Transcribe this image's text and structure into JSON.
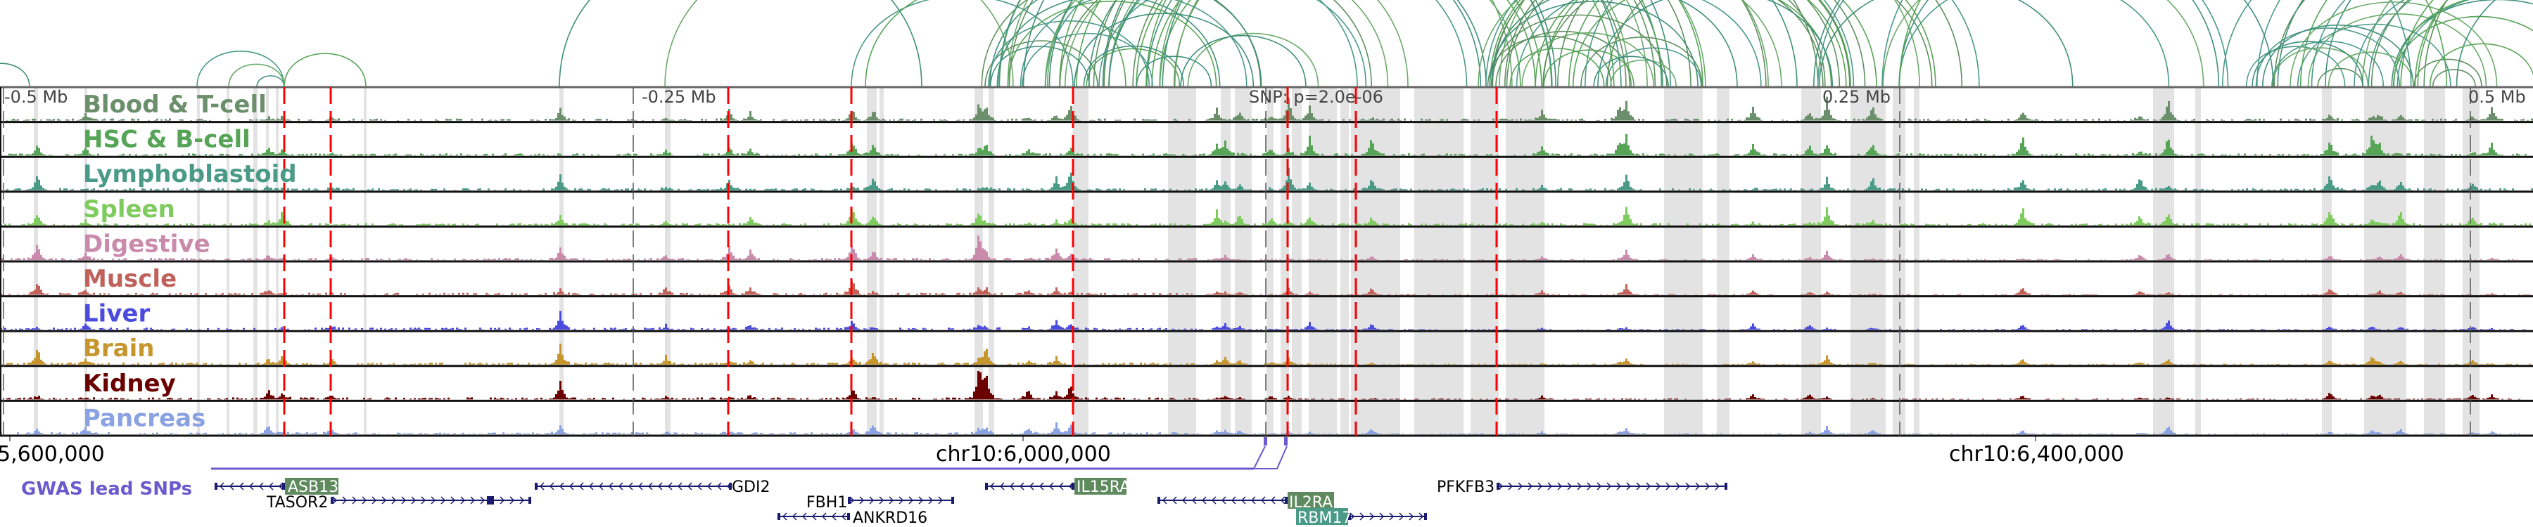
{
  "tracks": [
    {
      "label": "Blood & T-cell",
      "color": "#6a8f6a"
    },
    {
      "label": "HSC & B-cell",
      "color": "#56a456"
    },
    {
      "label": "Lymphoblastoid",
      "color": "#4a9a88"
    },
    {
      "label": "Spleen",
      "color": "#7fcc5e"
    },
    {
      "label": "Digestive",
      "color": "#c98aab"
    },
    {
      "label": "Muscle",
      "color": "#c0625a"
    },
    {
      "label": "Liver",
      "color": "#4b4be0"
    },
    {
      "label": "Brain",
      "color": "#c6952c"
    },
    {
      "label": "Kidney",
      "color": "#6b0000"
    },
    {
      "label": "Pancreas",
      "color": "#8aa2e2"
    }
  ],
  "offset_labels": {
    "minus_half": "-0.5 Mb",
    "minus_quarter": "-0.25 Mb",
    "snp": "SNP: p=2.0e-06",
    "plus_quarter": "0.25 Mb",
    "plus_half": "0.5 Mb"
  },
  "positions": {
    "left": "5,600,000",
    "center": "chr10:6,000,000",
    "right": "chr10:6,400,000"
  },
  "gwas": {
    "label": "GWAS lead SNPs",
    "color": "#6a5acd"
  },
  "genes": {
    "asb13": "ASB13",
    "tasor2": "TASOR2",
    "gdi2": "GDI2",
    "fbh1": "FBH1",
    "ankrd16": "ANKRD16",
    "il15ra": "IL15RA",
    "il2ra": "IL2RA",
    "rbm17": "RBM17",
    "pfkfb3": "PFKFB3"
  },
  "colors": {
    "gene": "#1a1a6e",
    "highlight_gene": "#5e8a5e",
    "highlight_gene_alt": "#4a9a88",
    "marker": "#ff0000",
    "band": "#e3e3e3"
  }
}
